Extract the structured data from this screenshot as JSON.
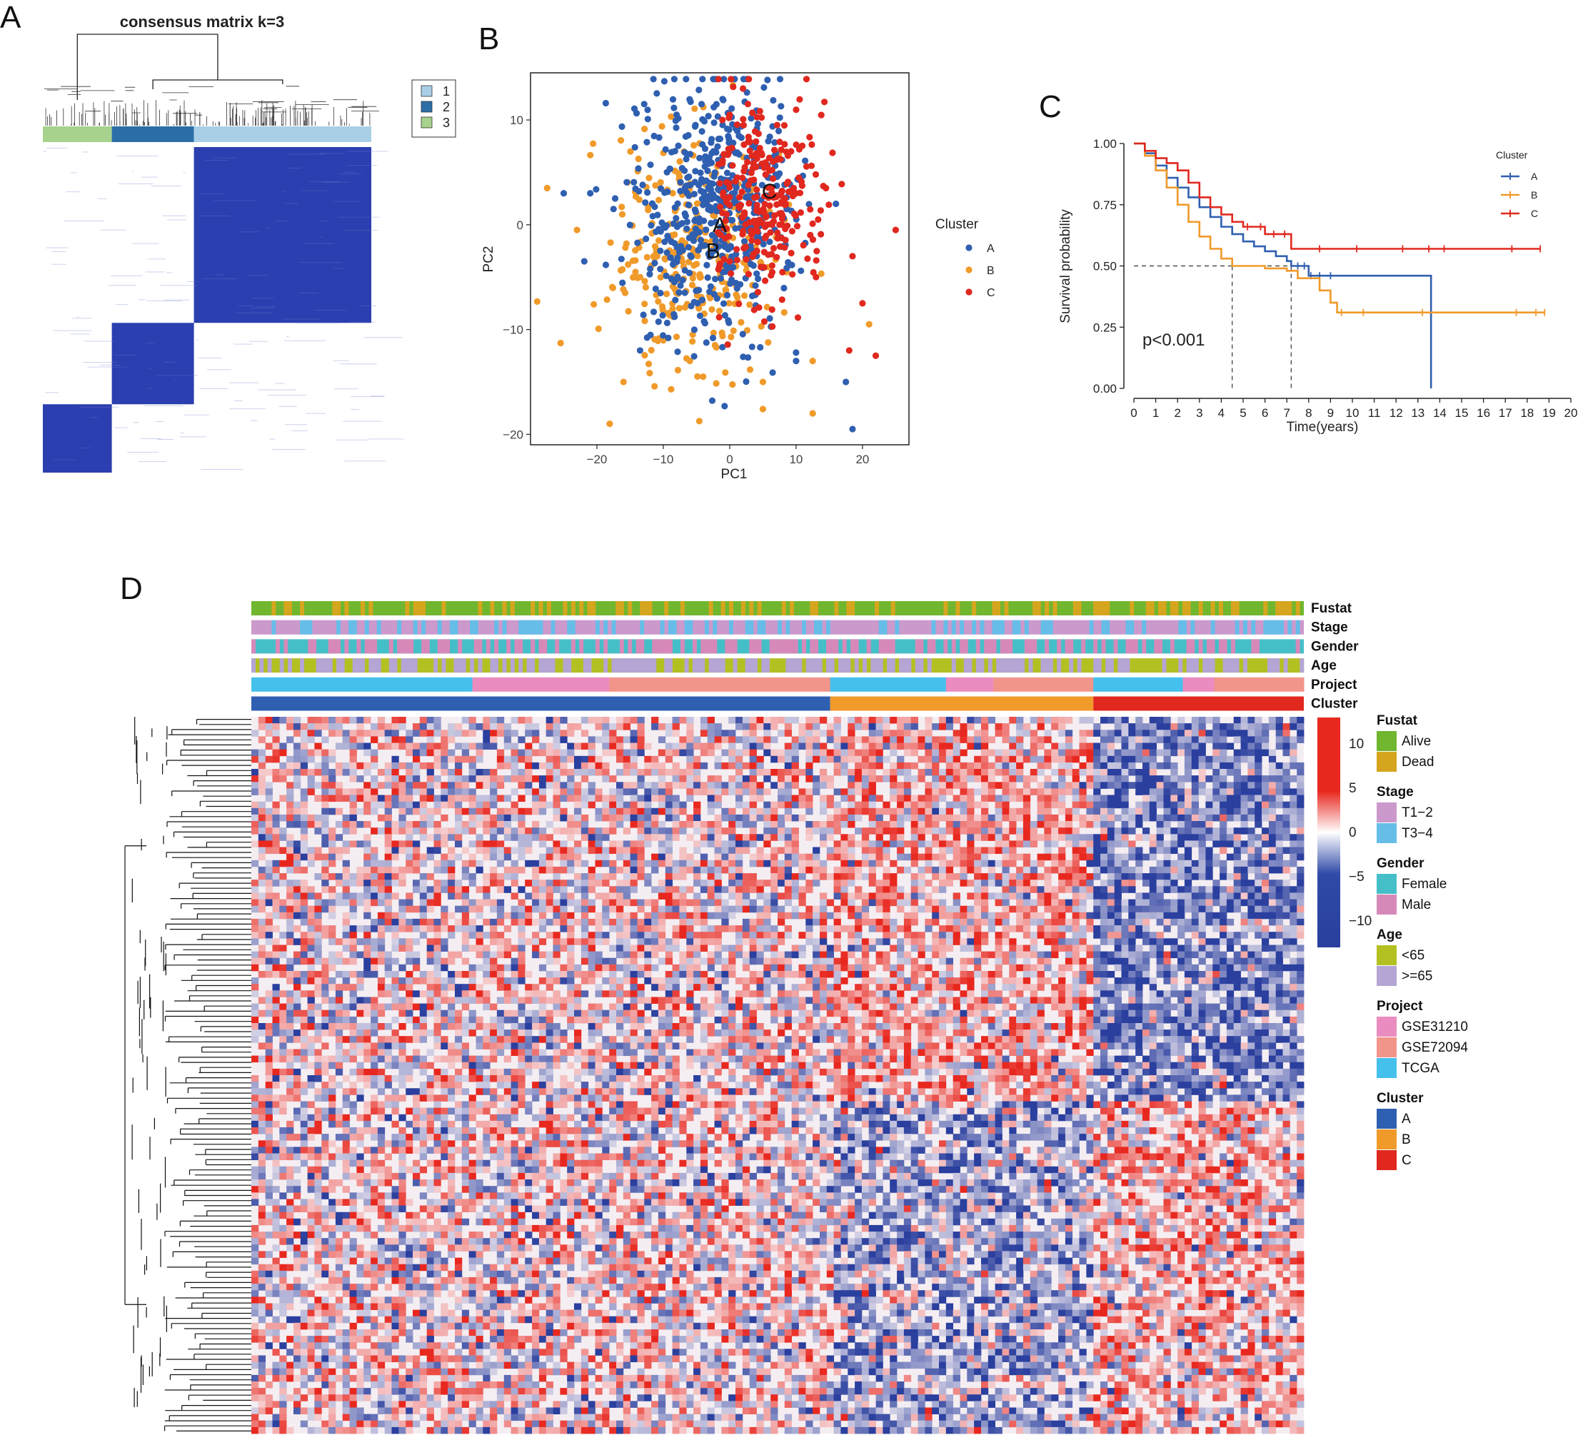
{
  "panels": {
    "a": "A",
    "b": "B",
    "c": "C",
    "d": "D"
  },
  "colors": {
    "blue": "#2f5fb0",
    "orange": "#f09a2a",
    "red": "#e0281f",
    "cons1": "#a9cfe7",
    "cons2": "#2b6ea8",
    "cons3": "#a7d28d",
    "heat_hi": "#e8281f",
    "heat_lo": "#2a3f9e",
    "alive": "#71b62f",
    "dead": "#d6a51e",
    "t12": "#cc99cc",
    "t34": "#66bde8",
    "female": "#45bfc7",
    "male": "#d689b9",
    "age_lt65": "#b3c022",
    "age_ge65": "#b4a5d4",
    "gse31210": "#ea8cc0",
    "gse72094": "#f1958a",
    "tcga": "#45c0ec"
  },
  "chart_data": [
    {
      "type": "heatmap",
      "id": "consensus",
      "title": "consensus matrix k=3",
      "legend": [
        "1",
        "2",
        "3"
      ],
      "column_groups": [
        {
          "cluster": "3",
          "fraction": 0.21
        },
        {
          "cluster": "2",
          "fraction": 0.25
        },
        {
          "cluster": "1",
          "fraction": 0.54
        }
      ]
    },
    {
      "type": "scatter",
      "id": "pca",
      "xlabel": "PC1",
      "ylabel": "PC2",
      "xlim": [
        -30,
        27
      ],
      "ylim": [
        -21,
        14.5
      ],
      "xticks": [
        -20,
        -10,
        0,
        10,
        20
      ],
      "yticks": [
        -20,
        -10,
        0,
        10
      ],
      "xtick_labels": [
        "−20",
        "−10",
        "0",
        "10",
        "20"
      ],
      "ytick_labels": [
        "−20",
        "−10",
        "0",
        "10"
      ],
      "legend_title": "Cluster",
      "series": [
        {
          "name": "A",
          "center": [
            -2.5,
            1.2
          ],
          "spread": [
            6.5,
            6.5
          ],
          "count": 520,
          "points": [
            [
              -25,
              3
            ],
            [
              -21,
              3
            ],
            [
              -17.5,
              1.5
            ],
            [
              -13.5,
              -12
            ],
            [
              -8,
              10.5
            ],
            [
              -2,
              11.5
            ],
            [
              17.5,
              -15
            ],
            [
              18.5,
              -19.5
            ],
            [
              10,
              -13
            ],
            [
              16,
              2
            ]
          ]
        },
        {
          "name": "B",
          "center": [
            -5.5,
            -2.5
          ],
          "spread": [
            6.2,
            6.0
          ],
          "count": 330,
          "points": [
            [
              -27.5,
              3.5
            ],
            [
              -23,
              -0.5
            ],
            [
              -16,
              -15
            ],
            [
              -13.5,
              -5
            ],
            [
              -6,
              -13
            ],
            [
              -4,
              -14.5
            ],
            [
              12.5,
              -18
            ],
            [
              12.5,
              -13
            ],
            [
              21,
              -9.5
            ],
            [
              5,
              -15
            ]
          ]
        },
        {
          "name": "C",
          "center": [
            5.5,
            2.5
          ],
          "spread": [
            4.8,
            5.0
          ],
          "count": 260,
          "points": [
            [
              2,
              13
            ],
            [
              0,
              10.5
            ],
            [
              10,
              3
            ],
            [
              14.5,
              3.5
            ],
            [
              25,
              -0.5
            ],
            [
              18.5,
              -3
            ],
            [
              20,
              -7.5
            ],
            [
              22,
              -12.5
            ],
            [
              18,
              -12
            ],
            [
              13,
              -5
            ]
          ]
        }
      ],
      "labels": [
        {
          "text": "A",
          "x": -1.5,
          "y": 0
        },
        {
          "text": "B",
          "x": -2.5,
          "y": -2.5
        },
        {
          "text": "C",
          "x": 6,
          "y": 3.2
        }
      ]
    },
    {
      "type": "line",
      "id": "km",
      "xlabel": "Time(years)",
      "ylabel": "Survival probability",
      "xlim": [
        0,
        20
      ],
      "ylim": [
        0,
        1
      ],
      "xticks": [
        0,
        1,
        2,
        3,
        4,
        5,
        6,
        7,
        8,
        9,
        10,
        11,
        12,
        13,
        14,
        15,
        16,
        17,
        18,
        19,
        20
      ],
      "xtick_labels": [
        "0",
        "1",
        "2",
        "3",
        "4",
        "5",
        "6",
        "7",
        "8",
        "9",
        "10",
        "11",
        "12",
        "13",
        "14",
        "15",
        "16",
        "17",
        "18",
        "19",
        "20"
      ],
      "yticks": [
        0,
        0.25,
        0.5,
        0.75,
        1.0
      ],
      "ytick_labels": [
        "0.00",
        "0.25",
        "0.50",
        "0.75",
        "1.00"
      ],
      "legend_title": "Cluster",
      "annotation": "p<0.001",
      "median_reference": {
        "y": 0.5,
        "x_values": [
          4.5,
          7.2
        ]
      },
      "series": [
        {
          "name": "A",
          "x": [
            0,
            0.5,
            1,
            1.5,
            2,
            2.5,
            3,
            3.5,
            4,
            4.5,
            5,
            5.5,
            6,
            6.5,
            7,
            7.2,
            8,
            9,
            10,
            11,
            12,
            13,
            13.6,
            13.6
          ],
          "y": [
            1.0,
            0.96,
            0.91,
            0.86,
            0.82,
            0.78,
            0.74,
            0.7,
            0.66,
            0.63,
            0.6,
            0.58,
            0.56,
            0.54,
            0.52,
            0.5,
            0.46,
            0.46,
            0.46,
            0.46,
            0.46,
            0.46,
            0.46,
            0.0
          ],
          "censor_x": [
            7.5,
            7.8,
            8.1,
            8.5,
            9.0
          ]
        },
        {
          "name": "B",
          "x": [
            0,
            0.5,
            1,
            1.5,
            2,
            2.5,
            3,
            3.5,
            4,
            4.5,
            5,
            6,
            7,
            7.5,
            8,
            8.5,
            9,
            9.3,
            10,
            12,
            14,
            16,
            18.8
          ],
          "y": [
            1.0,
            0.95,
            0.89,
            0.82,
            0.75,
            0.68,
            0.62,
            0.57,
            0.53,
            0.5,
            0.5,
            0.49,
            0.48,
            0.45,
            0.45,
            0.4,
            0.35,
            0.31,
            0.31,
            0.31,
            0.31,
            0.31,
            0.31
          ],
          "censor_x": [
            9.5,
            10.5,
            13.2,
            17.5,
            18.4,
            18.8
          ]
        },
        {
          "name": "C",
          "x": [
            0,
            0.5,
            1,
            1.5,
            2,
            2.5,
            3,
            3.5,
            4,
            4.5,
            5,
            6,
            7,
            7.2,
            8,
            10,
            12,
            14,
            16,
            18.6
          ],
          "y": [
            1.0,
            0.97,
            0.94,
            0.92,
            0.89,
            0.84,
            0.78,
            0.74,
            0.71,
            0.68,
            0.66,
            0.63,
            0.63,
            0.57,
            0.57,
            0.57,
            0.57,
            0.57,
            0.57,
            0.57
          ],
          "censor_x": [
            5.2,
            5.8,
            6.4,
            6.9,
            8.5,
            10.2,
            12.3,
            13.5,
            14.2,
            17.3,
            18.6
          ]
        }
      ]
    },
    {
      "type": "heatmap",
      "id": "expression",
      "color_scale": {
        "min": -13,
        "max": 13,
        "ticks": [
          10,
          5,
          0,
          -5,
          -10
        ],
        "tick_labels": [
          "10",
          "5",
          "0",
          "−5",
          "−10"
        ]
      },
      "annotation_tracks": [
        "Fustat",
        "Stage",
        "Gender",
        "Age",
        "Project",
        "Cluster"
      ],
      "cluster_fractions": [
        {
          "name": "A",
          "fraction": 0.55
        },
        {
          "name": "B",
          "fraction": 0.25
        },
        {
          "name": "C",
          "fraction": 0.2
        }
      ],
      "project_segments": [
        {
          "name": "TCGA",
          "fraction": 0.21
        },
        {
          "name": "GSE31210",
          "fraction": 0.13
        },
        {
          "name": "GSE72094",
          "fraction": 0.21
        },
        {
          "name": "TCGA",
          "fraction": 0.11
        },
        {
          "name": "GSE31210",
          "fraction": 0.045
        },
        {
          "name": "GSE72094",
          "fraction": 0.095
        },
        {
          "name": "TCGA",
          "fraction": 0.085
        },
        {
          "name": "GSE31210",
          "fraction": 0.03
        },
        {
          "name": "GSE72094",
          "fraction": 0.085
        }
      ],
      "legend": [
        {
          "title": "Fustat",
          "items": [
            {
              "label": "Alive",
              "color": "#71b62f"
            },
            {
              "label": "Dead",
              "color": "#d6a51e"
            }
          ]
        },
        {
          "title": "Stage",
          "items": [
            {
              "label": "T1−2",
              "color": "#cc99cc"
            },
            {
              "label": "T3−4",
              "color": "#66bde8"
            }
          ]
        },
        {
          "title": "Gender",
          "items": [
            {
              "label": "Female",
              "color": "#45bfc7"
            },
            {
              "label": "Male",
              "color": "#d689b9"
            }
          ]
        },
        {
          "title": "Age",
          "items": [
            {
              "label": "<65",
              "color": "#b3c022"
            },
            {
              "label": ">=65",
              "color": "#b4a5d4"
            }
          ]
        },
        {
          "title": "Project",
          "items": [
            {
              "label": "GSE31210",
              "color": "#ea8cc0"
            },
            {
              "label": "GSE72094",
              "color": "#f1958a"
            },
            {
              "label": "TCGA",
              "color": "#45c0ec"
            }
          ]
        },
        {
          "title": "Cluster",
          "items": [
            {
              "label": "A",
              "color": "#2f5fb0"
            },
            {
              "label": "B",
              "color": "#f09a2a"
            },
            {
              "label": "C",
              "color": "#e0281f"
            }
          ]
        }
      ]
    }
  ]
}
